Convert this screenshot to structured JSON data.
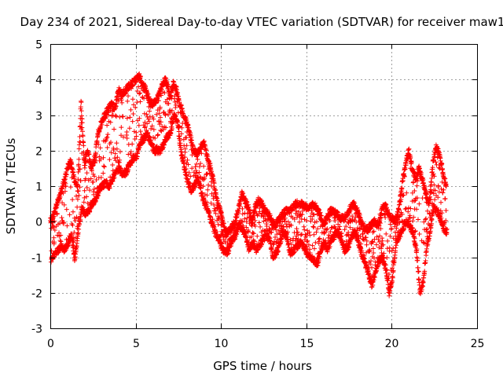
{
  "chart_data": {
    "type": "scatter",
    "title": "Day 234 of 2021, Sidereal Day-to-day VTEC variation (SDTVAR) for receiver maw1",
    "xlabel": "GPS time / hours",
    "ylabel": "SDTVAR / TECUs",
    "xlim": [
      0,
      25
    ],
    "ylim": [
      -3,
      5
    ],
    "xticks": [
      "0",
      "5",
      "10",
      "15",
      "20",
      "25"
    ],
    "yticks": [
      "-3",
      "-2",
      "-1",
      "0",
      "1",
      "2",
      "3",
      "4",
      "5"
    ],
    "grid": true,
    "marker": "+",
    "color": "#ff0000",
    "series": [
      {
        "name": "SDTVAR",
        "x": [
          0.0,
          0.2,
          0.4,
          0.6,
          0.8,
          1.0,
          1.2,
          1.4,
          1.6,
          1.8,
          2.0,
          2.2,
          2.4,
          2.6,
          2.8,
          3.0,
          3.2,
          3.4,
          3.6,
          3.8,
          4.0,
          4.2,
          4.4,
          4.6,
          4.8,
          5.0,
          5.2,
          5.4,
          5.6,
          5.8,
          6.0,
          6.2,
          6.4,
          6.6,
          6.8,
          7.0,
          7.2,
          7.4,
          7.6,
          7.8,
          8.0,
          8.2,
          8.4,
          8.6,
          8.8,
          9.0,
          9.2,
          9.4,
          9.6,
          9.8,
          10.0,
          10.2,
          10.4,
          10.6,
          10.8,
          11.0,
          11.2,
          11.4,
          11.6,
          11.8,
          12.0,
          12.2,
          12.4,
          12.6,
          12.8,
          13.0,
          13.2,
          13.4,
          13.6,
          13.8,
          14.0,
          14.2,
          14.4,
          14.6,
          14.8,
          15.0,
          15.2,
          15.4,
          15.6,
          15.8,
          16.0,
          16.2,
          16.4,
          16.6,
          16.8,
          17.0,
          17.2,
          17.4,
          17.6,
          17.8,
          18.0,
          18.2,
          18.4,
          18.6,
          18.8,
          19.0,
          19.2,
          19.4,
          19.6,
          19.8,
          20.0,
          20.2,
          20.4,
          20.6,
          20.8,
          21.0,
          21.2,
          21.4,
          21.6,
          21.8,
          22.0,
          22.2,
          22.4,
          22.6,
          22.8,
          23.0,
          23.2
        ],
        "upper": [
          0.0,
          0.2,
          0.5,
          0.8,
          1.1,
          1.5,
          1.7,
          1.2,
          0.9,
          3.4,
          1.6,
          2.0,
          1.5,
          1.8,
          2.5,
          2.8,
          3.0,
          3.2,
          3.3,
          3.2,
          3.7,
          3.6,
          3.7,
          3.8,
          3.9,
          4.0,
          4.1,
          3.9,
          3.7,
          3.4,
          3.3,
          3.4,
          3.6,
          3.9,
          4.0,
          3.5,
          3.9,
          3.7,
          3.3,
          3.0,
          2.8,
          2.4,
          2.0,
          1.9,
          2.1,
          2.2,
          1.8,
          1.5,
          1.0,
          0.5,
          0.3,
          -0.2,
          -0.3,
          -0.2,
          0.0,
          0.3,
          0.8,
          0.6,
          0.4,
          0.0,
          0.4,
          0.6,
          0.5,
          0.3,
          0.2,
          0.0,
          -0.1,
          0.1,
          0.2,
          0.3,
          0.3,
          0.4,
          0.5,
          0.5,
          0.5,
          0.4,
          0.4,
          0.5,
          0.4,
          0.2,
          -0.1,
          0.1,
          0.3,
          0.3,
          0.2,
          0.1,
          0.1,
          0.2,
          0.4,
          0.5,
          0.3,
          0.0,
          -0.2,
          -0.2,
          -0.1,
          0.0,
          -0.1,
          0.3,
          0.5,
          0.2,
          0.1,
          0.0,
          0.3,
          1.0,
          1.6,
          2.0,
          1.5,
          1.2,
          1.5,
          1.2,
          0.8,
          0.5,
          1.6,
          2.1,
          1.9,
          1.4,
          1.0
        ],
        "lower": [
          -1.1,
          -0.9,
          -0.8,
          -0.7,
          -0.8,
          -0.6,
          -0.4,
          -1.1,
          -0.2,
          0.4,
          0.2,
          0.3,
          0.5,
          0.6,
          0.9,
          1.0,
          1.1,
          1.0,
          1.2,
          1.4,
          1.5,
          1.3,
          1.4,
          1.6,
          1.8,
          1.8,
          2.2,
          2.3,
          2.5,
          2.3,
          2.0,
          2.0,
          2.0,
          2.2,
          2.4,
          2.5,
          3.0,
          2.8,
          2.0,
          1.5,
          1.1,
          0.9,
          1.0,
          1.2,
          0.8,
          0.5,
          0.3,
          0.0,
          -0.3,
          -0.5,
          -0.7,
          -0.9,
          -0.8,
          -0.5,
          -0.4,
          -0.1,
          -0.2,
          -0.4,
          -0.8,
          -0.6,
          -0.8,
          -0.7,
          -0.5,
          -0.4,
          -0.5,
          -1.0,
          -0.9,
          -0.6,
          -0.3,
          -0.4,
          -0.9,
          -0.8,
          -0.7,
          -0.6,
          -0.7,
          -0.9,
          -1.0,
          -1.1,
          -1.2,
          -0.8,
          -0.6,
          -0.8,
          -0.5,
          -0.4,
          -0.3,
          -0.5,
          -0.8,
          -0.7,
          -0.4,
          -0.3,
          -0.6,
          -0.9,
          -1.2,
          -1.5,
          -1.8,
          -1.4,
          -1.1,
          -1.0,
          -1.3,
          -2.0,
          -1.6,
          -0.6,
          -0.4,
          -0.2,
          0.0,
          -0.1,
          -0.3,
          -0.8,
          -2.0,
          -1.7,
          -0.7,
          -0.3,
          0.4,
          0.3,
          0.1,
          -0.2,
          -0.3
        ]
      }
    ]
  }
}
